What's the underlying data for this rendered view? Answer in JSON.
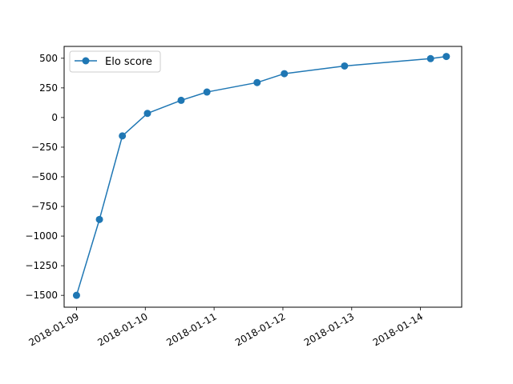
{
  "chart_data": {
    "type": "line",
    "title": "",
    "xlabel": "",
    "ylabel": "",
    "x_type": "date",
    "xlim": [
      "2018-01-08T19:41",
      "2018-01-14T14:22"
    ],
    "ylim": [
      -1600,
      600
    ],
    "x_ticks": [
      {
        "value": "2018-01-09",
        "label": "2018-01-09"
      },
      {
        "value": "2018-01-10",
        "label": "2018-01-10"
      },
      {
        "value": "2018-01-11",
        "label": "2018-01-11"
      },
      {
        "value": "2018-01-12",
        "label": "2018-01-12"
      },
      {
        "value": "2018-01-13",
        "label": "2018-01-13"
      },
      {
        "value": "2018-01-14",
        "label": "2018-01-14"
      }
    ],
    "y_ticks": [
      {
        "value": 500,
        "label": "500"
      },
      {
        "value": 250,
        "label": "250"
      },
      {
        "value": 0,
        "label": "0"
      },
      {
        "value": -250,
        "label": "−250"
      },
      {
        "value": -500,
        "label": "−500"
      },
      {
        "value": -750,
        "label": "−750"
      },
      {
        "value": -1000,
        "label": "−1000"
      },
      {
        "value": -1250,
        "label": "−1250"
      },
      {
        "value": -1500,
        "label": "−1500"
      }
    ],
    "grid": false,
    "legend_position": "top-left",
    "series": [
      {
        "name": "Elo score",
        "color": "#1f77b4",
        "marker": "circle",
        "points": [
          {
            "x": "2018-01-09T00:00",
            "y": -1500
          },
          {
            "x": "2018-01-09T08:00",
            "y": -860
          },
          {
            "x": "2018-01-09T16:00",
            "y": -155
          },
          {
            "x": "2018-01-10T00:45",
            "y": 35
          },
          {
            "x": "2018-01-10T12:30",
            "y": 145
          },
          {
            "x": "2018-01-10T21:30",
            "y": 215
          },
          {
            "x": "2018-01-11T15:00",
            "y": 295
          },
          {
            "x": "2018-01-12T00:30",
            "y": 370
          },
          {
            "x": "2018-01-12T21:30",
            "y": 435
          },
          {
            "x": "2018-01-14T03:30",
            "y": 497
          },
          {
            "x": "2018-01-14T09:00",
            "y": 515
          }
        ]
      }
    ]
  }
}
